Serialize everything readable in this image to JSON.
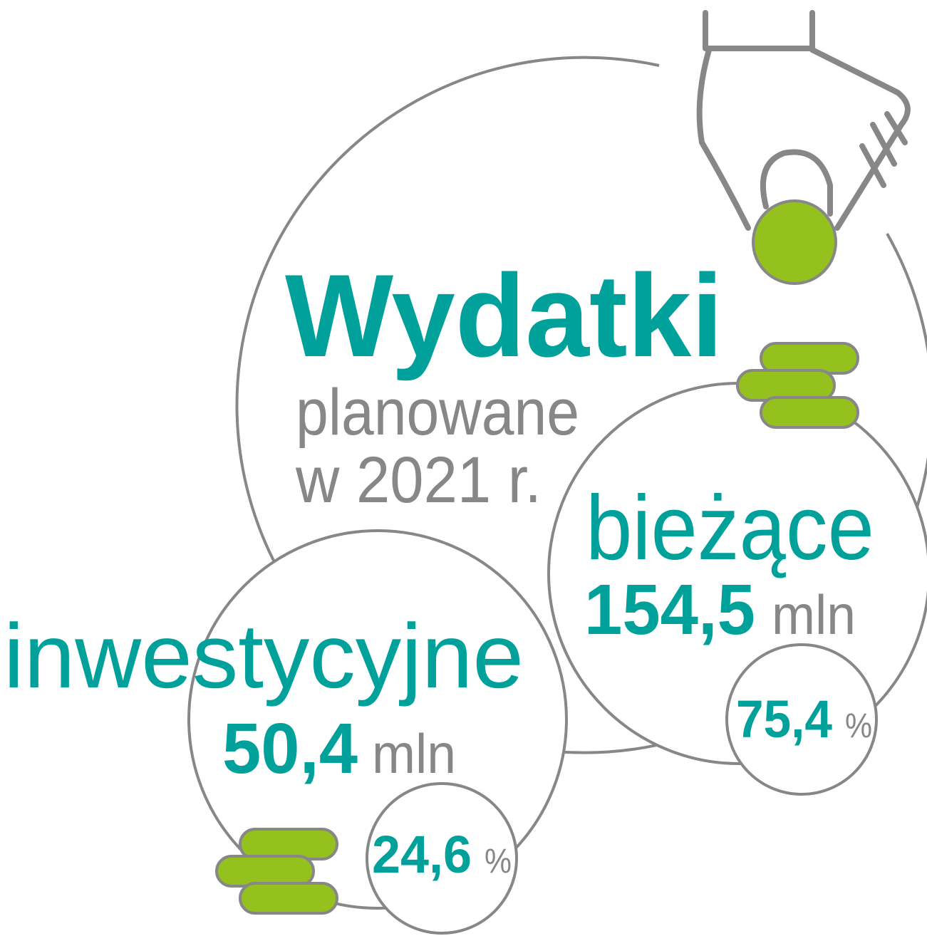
{
  "title": "Wydatki",
  "subtitle": [
    "planowane",
    "w 2021 r."
  ],
  "items": [
    {
      "label": "bieżące",
      "amount": "154,5",
      "unit": "mln",
      "share": "75,4",
      "share_unit": "%"
    },
    {
      "label": "inwestycyjne",
      "amount": "50,4",
      "unit": "mln",
      "share": "24,6",
      "share_unit": "%"
    }
  ]
}
